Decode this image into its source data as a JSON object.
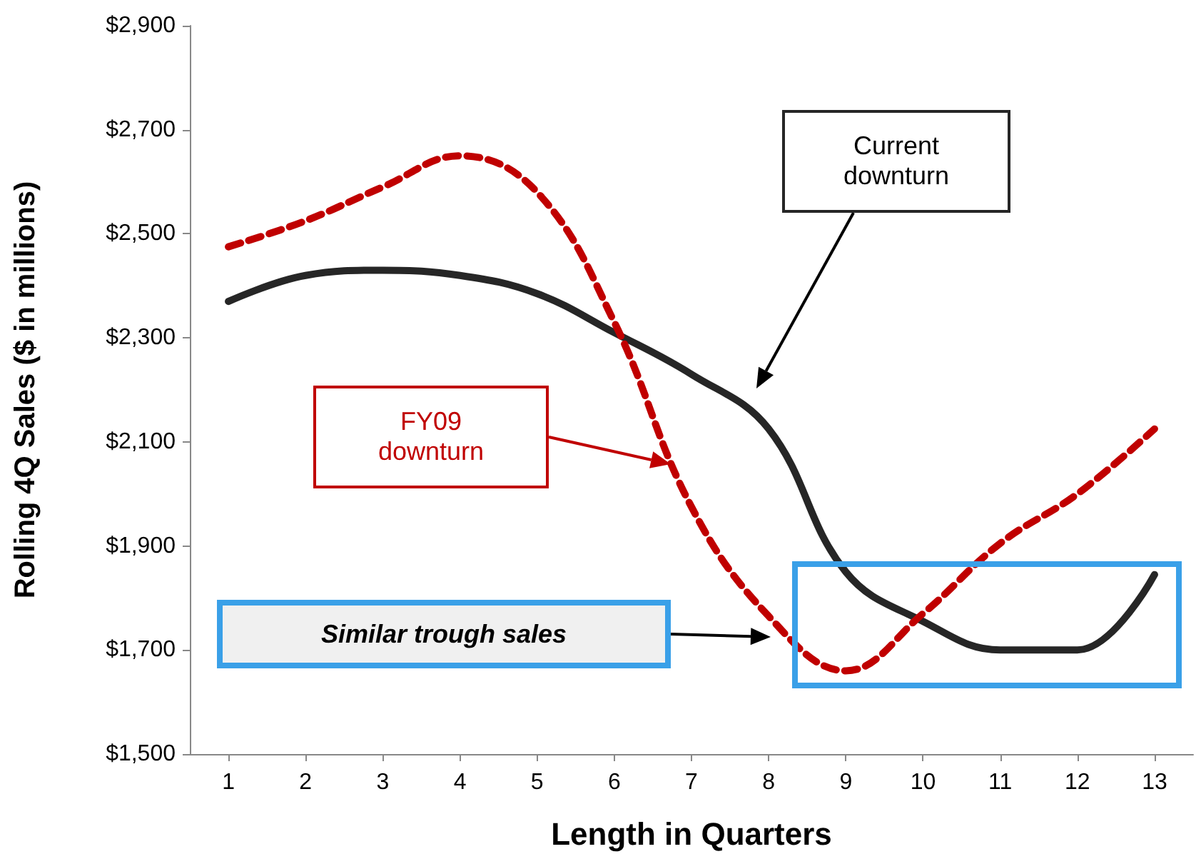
{
  "chart_data": {
    "type": "line",
    "xlabel": "Length in Quarters",
    "ylabel": "Rolling 4Q Sales ($ in millions)",
    "x": [
      1,
      2,
      3,
      4,
      5,
      6,
      7,
      8,
      9,
      10,
      11,
      12,
      13
    ],
    "xlim": [
      0.5,
      13.5
    ],
    "xticks": [
      1,
      2,
      3,
      4,
      5,
      6,
      7,
      8,
      9,
      10,
      11,
      12,
      13
    ],
    "ylim": [
      1500,
      2900
    ],
    "yticks": [
      {
        "value": 1500,
        "label": "$1,500"
      },
      {
        "value": 1700,
        "label": "$1,700"
      },
      {
        "value": 1900,
        "label": "$1,900"
      },
      {
        "value": 2100,
        "label": "$2,100"
      },
      {
        "value": 2300,
        "label": "$2,300"
      },
      {
        "value": 2500,
        "label": "$2,500"
      },
      {
        "value": 2700,
        "label": "$2,700"
      },
      {
        "value": 2900,
        "label": "$2,900"
      }
    ],
    "grid": false,
    "marker": "none",
    "series": [
      {
        "color": "#262626",
        "line_style": "solid",
        "values": [
          2370,
          2420,
          2430,
          2420,
          2385,
          2310,
          2230,
          2125,
          1850,
          1755,
          1700,
          1700,
          1845
        ]
      },
      {
        "color": "#c00000",
        "line_style": "dashed",
        "values": [
          2475,
          2525,
          2590,
          2650,
          2580,
          2330,
          1975,
          1765,
          1660,
          1770,
          1905,
          2000,
          2125
        ]
      }
    ],
    "annotations": [
      "Current downturn",
      "FY09 downturn",
      "Similar trough sales"
    ]
  }
}
